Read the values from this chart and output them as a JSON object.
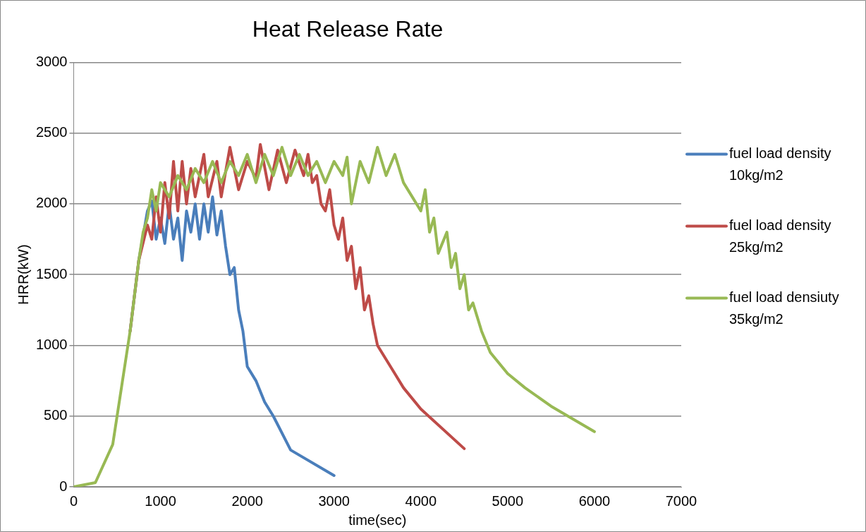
{
  "chart_data": {
    "type": "line",
    "title": "Heat Release Rate",
    "xlabel": "time(sec)",
    "ylabel": "HRR(kW)",
    "xlim": [
      0,
      7000
    ],
    "xticks": [
      0,
      1000,
      2000,
      3000,
      4000,
      5000,
      6000,
      7000
    ],
    "ylim": [
      0,
      3000
    ],
    "yticks": [
      0,
      500,
      1000,
      1500,
      2000,
      2500,
      3000
    ],
    "grid": "y",
    "legend": "right",
    "marker": "none",
    "line_style": "solid",
    "series": [
      {
        "name": "fuel load density 10kg/m2",
        "color": "#4a7ebb",
        "x": [
          650,
          750,
          850,
          900,
          950,
          1000,
          1050,
          1100,
          1150,
          1200,
          1250,
          1300,
          1350,
          1400,
          1450,
          1500,
          1550,
          1600,
          1650,
          1700,
          1750,
          1800,
          1850,
          1900,
          1950,
          2000,
          2100,
          2200,
          2300,
          2500,
          3000
        ],
        "values": [
          1100,
          1600,
          1950,
          2020,
          1750,
          1900,
          1720,
          2000,
          1750,
          1900,
          1600,
          1950,
          1800,
          2000,
          1750,
          2000,
          1800,
          2050,
          1780,
          1950,
          1700,
          1500,
          1550,
          1250,
          1100,
          850,
          750,
          600,
          500,
          260,
          80
        ]
      },
      {
        "name": "fuel load density 25kg/m2",
        "color": "#be4b48",
        "x": [
          650,
          750,
          850,
          900,
          950,
          1000,
          1050,
          1100,
          1150,
          1200,
          1250,
          1300,
          1350,
          1400,
          1500,
          1550,
          1650,
          1700,
          1800,
          1900,
          2000,
          2100,
          2150,
          2250,
          2350,
          2450,
          2550,
          2650,
          2700,
          2750,
          2800,
          2850,
          2900,
          2950,
          3000,
          3050,
          3100,
          3150,
          3200,
          3250,
          3300,
          3350,
          3400,
          3450,
          3500,
          3600,
          3700,
          3800,
          4000,
          4500
        ],
        "values": [
          1100,
          1600,
          1850,
          1750,
          2050,
          1800,
          2150,
          1900,
          2300,
          1950,
          2300,
          2000,
          2250,
          2050,
          2350,
          2050,
          2300,
          2050,
          2400,
          2100,
          2300,
          2180,
          2420,
          2100,
          2380,
          2150,
          2380,
          2200,
          2350,
          2150,
          2200,
          2000,
          1950,
          2100,
          1850,
          1750,
          1900,
          1600,
          1700,
          1400,
          1550,
          1250,
          1350,
          1150,
          1000,
          900,
          800,
          700,
          550,
          270
        ]
      },
      {
        "name": "fuel load densiuty 35kg/m2",
        "color": "#98b954",
        "x": [
          0,
          250,
          450,
          550,
          650,
          750,
          800,
          850,
          900,
          950,
          1000,
          1100,
          1200,
          1300,
          1400,
          1500,
          1600,
          1700,
          1800,
          1900,
          2000,
          2100,
          2200,
          2300,
          2400,
          2500,
          2600,
          2700,
          2800,
          2900,
          3000,
          3100,
          3150,
          3200,
          3300,
          3400,
          3500,
          3600,
          3700,
          3800,
          3900,
          4000,
          4050,
          4100,
          4150,
          4200,
          4300,
          4350,
          4400,
          4450,
          4500,
          4550,
          4600,
          4700,
          4800,
          5000,
          5200,
          5500,
          6000
        ],
        "values": [
          0,
          30,
          300,
          700,
          1100,
          1600,
          1800,
          1900,
          2100,
          1950,
          2150,
          2050,
          2200,
          2100,
          2250,
          2150,
          2300,
          2150,
          2300,
          2200,
          2350,
          2150,
          2350,
          2200,
          2400,
          2200,
          2350,
          2200,
          2300,
          2150,
          2300,
          2200,
          2330,
          2000,
          2300,
          2150,
          2400,
          2200,
          2350,
          2150,
          2050,
          1950,
          2100,
          1800,
          1900,
          1650,
          1800,
          1550,
          1650,
          1400,
          1500,
          1250,
          1300,
          1100,
          950,
          800,
          700,
          570,
          390
        ]
      }
    ]
  }
}
